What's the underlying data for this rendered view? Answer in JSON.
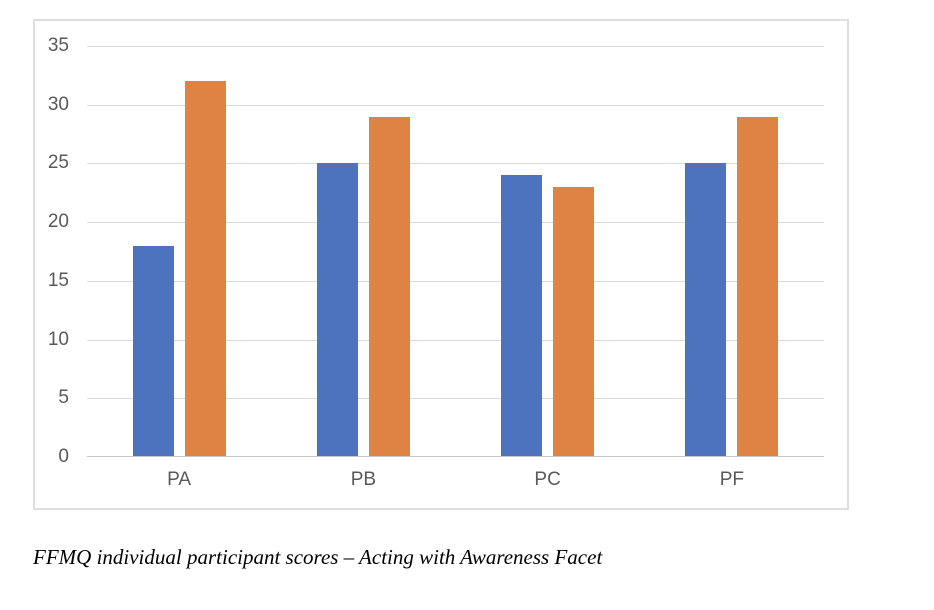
{
  "caption": {
    "text": "FFMQ individual participant scores – Acting with Awareness Facet"
  },
  "chart_data": {
    "type": "bar",
    "title": "",
    "xlabel": "",
    "ylabel": "",
    "categories": [
      "PA",
      "PB",
      "PC",
      "PF"
    ],
    "series": [
      {
        "name": "series-1",
        "color": "#4D73BE",
        "values": [
          18,
          25,
          24,
          25
        ]
      },
      {
        "name": "series-2",
        "color": "#DE8344",
        "values": [
          32,
          29,
          23,
          29
        ]
      }
    ],
    "ylim": [
      0,
      35
    ],
    "yticks": [
      0,
      5,
      10,
      15,
      20,
      25,
      30,
      35
    ],
    "grid": true,
    "legend_position": "none",
    "colors": {
      "gridline": "#D9D9D9",
      "axis_line": "#C6C6C6",
      "tick_label": "#595959",
      "chart_border": "#DEDEDE"
    }
  }
}
